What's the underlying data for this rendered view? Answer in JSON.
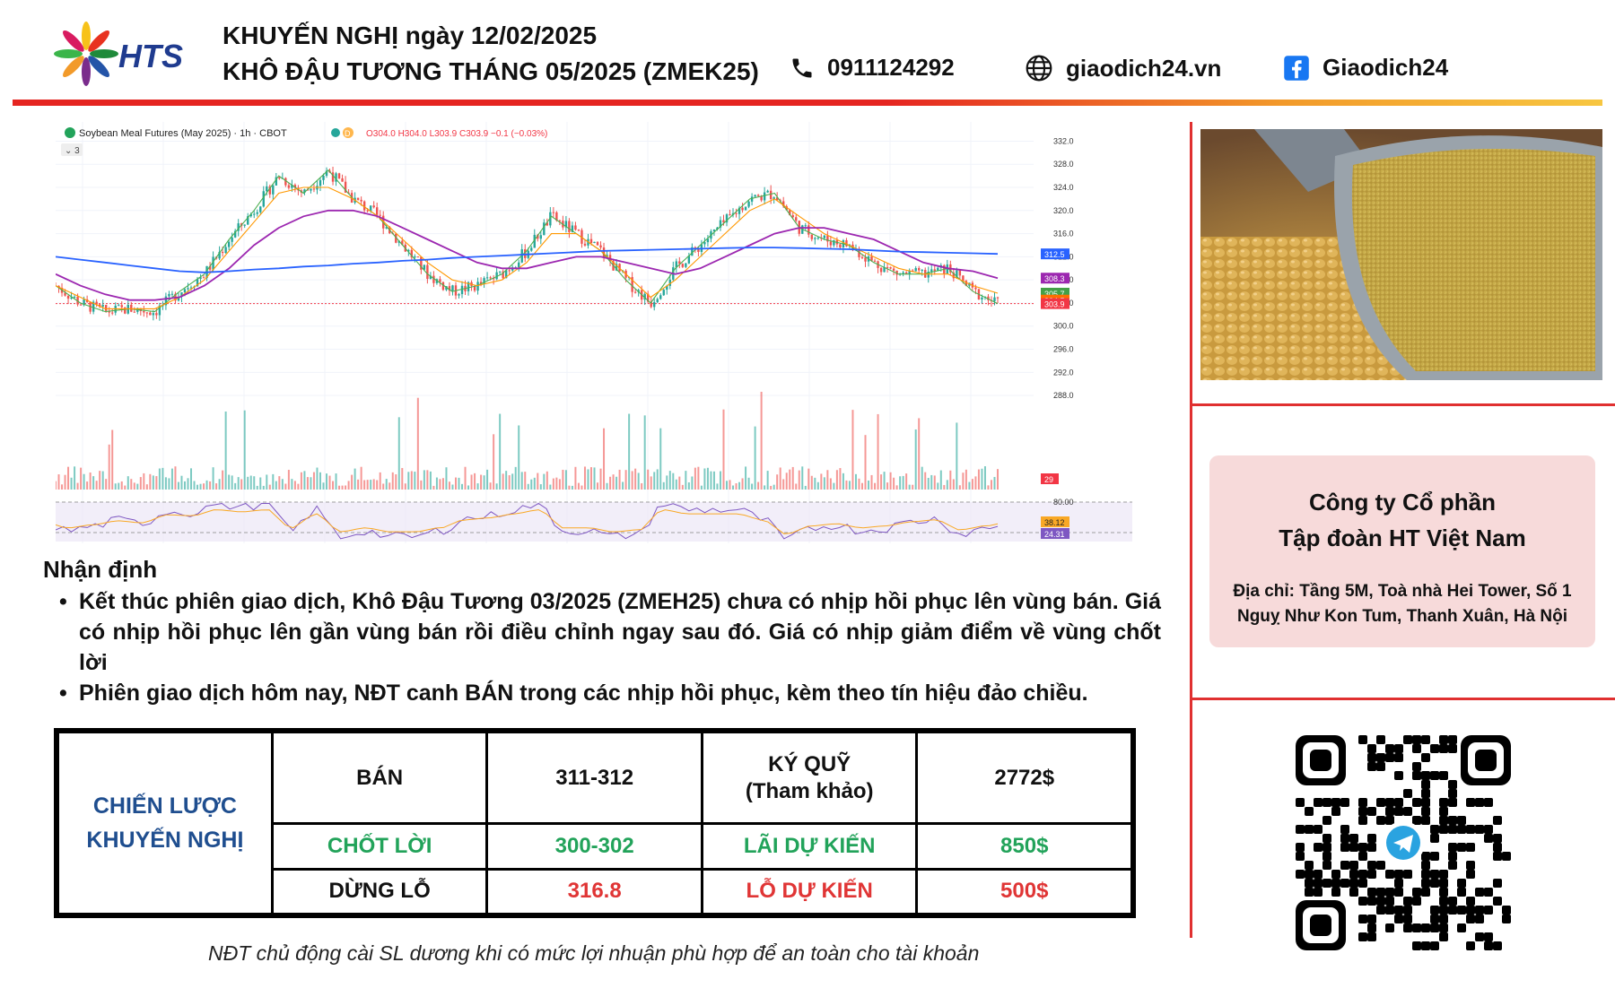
{
  "header": {
    "brand": "HTS",
    "title_line1": "KHUYẾN NGHỊ ngày 12/02/2025",
    "title_line2": "KHÔ ĐẬU TƯƠNG THÁNG 05/2025 (ZMEK25)",
    "phone": "0911124292",
    "website": "giaodich24.vn",
    "facebook": "Giaodich24",
    "icons": [
      "phone-icon",
      "globe-icon",
      "facebook-icon"
    ],
    "bar_colors": [
      "#e52521",
      "#f29a2a",
      "#f7c640"
    ]
  },
  "chart": {
    "legend_title": "Soybean Meal Futures (May 2025) · 1h · CBOT",
    "legend_flag": "D",
    "ohlc": "O304.0 H304.0 L303.9 C303.9 −0.1 (−0.03%)",
    "indicator_count": "3"
  },
  "chart_data": {
    "type": "line",
    "title": "Soybean Meal Futures (May 2025) · 1h · CBOT",
    "price_ticks": [
      "332.0",
      "328.0",
      "324.0",
      "320.0",
      "316.0",
      "312.0",
      "308.0",
      "304.0",
      "300.0",
      "296.0",
      "292.0",
      "288.0"
    ],
    "ylim": [
      286,
      333
    ],
    "price_badges": [
      {
        "label": "312.5",
        "value": 312.5,
        "color": "#2962ff"
      },
      {
        "label": "308.3",
        "value": 308.3,
        "color": "#9c27b0"
      },
      {
        "label": "305.7",
        "value": 305.7,
        "color": "#43a047"
      },
      {
        "label": "304.5",
        "value": 304.5,
        "color": "#ff6d00"
      },
      {
        "label": "303.9",
        "value": 303.9,
        "color": "#f23645"
      }
    ],
    "volume_badge": "29",
    "rsi_ticks": [
      "80.00"
    ],
    "rsi_badges": [
      {
        "label": "38.12",
        "color": "#f9a825"
      },
      {
        "label": "24.31",
        "color": "#7e57c2"
      }
    ],
    "series": [
      {
        "values": [
          307,
          304,
          302.5,
          303,
          302.5,
          306,
          309,
          315,
          320,
          326,
          323,
          327,
          322,
          319,
          314,
          309,
          306,
          307,
          309,
          313,
          319,
          316,
          313,
          308,
          304,
          310,
          314,
          318,
          322,
          323,
          317,
          315,
          314,
          311,
          309,
          309,
          310,
          306,
          303.9
        ]
      },
      {
        "values": [
          307,
          305,
          303,
          303,
          303,
          305,
          308,
          313,
          318,
          323,
          324,
          324,
          322,
          319,
          315,
          311,
          308,
          307,
          308,
          311,
          316,
          316,
          313,
          309,
          305,
          308,
          312,
          316,
          320,
          322,
          319,
          316,
          314,
          312,
          310,
          309,
          309,
          307,
          305.7
        ]
      },
      {
        "values": [
          309,
          307,
          305.5,
          304.5,
          304.5,
          305,
          307,
          310,
          314,
          317,
          319,
          320,
          320,
          319,
          317,
          315,
          313,
          311,
          310,
          310,
          311,
          312,
          312,
          311,
          310,
          309,
          310,
          312,
          314,
          316,
          317,
          317,
          316,
          315,
          313,
          311,
          310,
          309.5,
          308.3
        ]
      },
      {
        "values": [
          312,
          311.5,
          311,
          310.5,
          310,
          309.5,
          309.3,
          309.5,
          309.8,
          310,
          310.3,
          310.5,
          310.8,
          311,
          311.3,
          311.5,
          311.8,
          312,
          312.2,
          312.4,
          312.6,
          312.8,
          313,
          313.1,
          313.2,
          313.3,
          313.4,
          313.5,
          313.6,
          313.6,
          313.5,
          313.4,
          313.3,
          313.1,
          312.9,
          312.8,
          312.7,
          312.6,
          312.5
        ]
      }
    ]
  },
  "analysis": {
    "heading": "Nhận định",
    "bullets": [
      "Kết thúc phiên giao dịch, Khô Đậu Tương 03/2025 (ZMEH25) chưa có nhịp hồi phục lên vùng bán. Giá có nhịp hồi phục lên gần vùng bán rồi điều chỉnh ngay sau đó. Giá có nhịp giảm điểm về vùng chốt lời",
      "Phiên giao dịch hôm nay, NĐT canh BÁN trong các nhịp hồi phục, kèm theo tín hiệu đảo chiều."
    ]
  },
  "strategy": {
    "lead_line1": "CHIẾN LƯỢC",
    "lead_line2": "KHUYẾN NGHỊ",
    "rows": [
      {
        "label": "BÁN",
        "value": "311-312",
        "label2_line1": "KÝ QUỸ",
        "label2_line2": "(Tham khảo)",
        "value2": "2772$"
      },
      {
        "label": "CHỐT LỜI",
        "value": "300-302",
        "label2": "LÃI DỰ KIẾN",
        "value2": "850$"
      },
      {
        "label": "DỪNG LỖ",
        "value": "316.8",
        "label2": "LỖ DỰ KIẾN",
        "value2": "500$"
      }
    ],
    "colors": {
      "blue": "#1f4e8f",
      "green": "#22a35a",
      "red": "#e03535"
    }
  },
  "footnote": "NĐT chủ động cài SL dương khi có mức lợi nhuận phù hợp để an toàn cho tài khoản",
  "company": {
    "name_line1": "Công ty Cổ phần",
    "name_line2": "Tập đoàn HT Việt Nam",
    "address_line1": "Địa chỉ: Tầng 5M, Toà nhà Hei Tower, Số 1",
    "address_line2": "Nguỵ Như Kon Tum, Thanh Xuân, Hà Nội"
  },
  "media": {
    "photo": "soybean-meal-scoop-photo",
    "qr": "telegram-qr-code"
  }
}
